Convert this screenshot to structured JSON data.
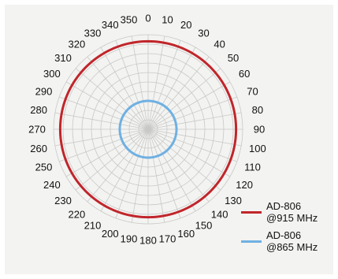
{
  "chart_data": {
    "type": "polar",
    "title": "",
    "angle_unit": "degrees",
    "angle_ticks": [
      0,
      10,
      20,
      30,
      40,
      50,
      60,
      70,
      80,
      90,
      100,
      110,
      120,
      130,
      140,
      150,
      160,
      170,
      180,
      190,
      200,
      210,
      220,
      230,
      240,
      250,
      260,
      270,
      280,
      290,
      300,
      310,
      320,
      330,
      340,
      350
    ],
    "angle_labels": [
      "0",
      "10",
      "20",
      "30",
      "40",
      "50",
      "60",
      "70",
      "80",
      "90",
      "100",
      "110",
      "120",
      "130",
      "140",
      "150",
      "160",
      "170",
      "180",
      "190",
      "200",
      "210",
      "220",
      "230",
      "240",
      "250",
      "260",
      "270",
      "280",
      "290",
      "300",
      "310",
      "320",
      "330",
      "340",
      "350"
    ],
    "radial_range": [
      0,
      1
    ],
    "radial_rings": 10,
    "grid": true,
    "legend_position": "bottom-right",
    "series": [
      {
        "name": "AD-806\n@915 MHz",
        "label_lines": [
          "AD-806",
          "@915 MHz"
        ],
        "color": "#c0262b",
        "angles": [
          0,
          10,
          20,
          30,
          40,
          50,
          60,
          70,
          80,
          90,
          100,
          110,
          120,
          130,
          140,
          150,
          160,
          170,
          180,
          190,
          200,
          210,
          220,
          230,
          240,
          250,
          260,
          270,
          280,
          290,
          300,
          310,
          320,
          330,
          340,
          350
        ],
        "values": [
          0.93,
          0.93,
          0.93,
          0.93,
          0.93,
          0.93,
          0.93,
          0.93,
          0.93,
          0.93,
          0.93,
          0.93,
          0.93,
          0.93,
          0.93,
          0.93,
          0.93,
          0.93,
          0.93,
          0.93,
          0.93,
          0.93,
          0.93,
          0.93,
          0.93,
          0.93,
          0.93,
          0.93,
          0.93,
          0.93,
          0.93,
          0.93,
          0.93,
          0.93,
          0.93,
          0.93
        ]
      },
      {
        "name": "AD-806\n@865 MHz",
        "label_lines": [
          "AD-806",
          "@865 MHz"
        ],
        "color": "#6fb0e2",
        "angles": [
          0,
          10,
          20,
          30,
          40,
          50,
          60,
          70,
          80,
          90,
          100,
          110,
          120,
          130,
          140,
          150,
          160,
          170,
          180,
          190,
          200,
          210,
          220,
          230,
          240,
          250,
          260,
          270,
          280,
          290,
          300,
          310,
          320,
          330,
          340,
          350
        ],
        "values": [
          0.3,
          0.3,
          0.3,
          0.3,
          0.3,
          0.3,
          0.3,
          0.3,
          0.3,
          0.3,
          0.3,
          0.3,
          0.3,
          0.3,
          0.3,
          0.3,
          0.3,
          0.3,
          0.3,
          0.3,
          0.3,
          0.3,
          0.3,
          0.3,
          0.3,
          0.3,
          0.3,
          0.3,
          0.3,
          0.3,
          0.3,
          0.3,
          0.3,
          0.3,
          0.3,
          0.3
        ]
      }
    ]
  },
  "colors": {
    "panel_background": "#f3f3f1",
    "grid": "#c8c8c8",
    "text": "#111111"
  }
}
